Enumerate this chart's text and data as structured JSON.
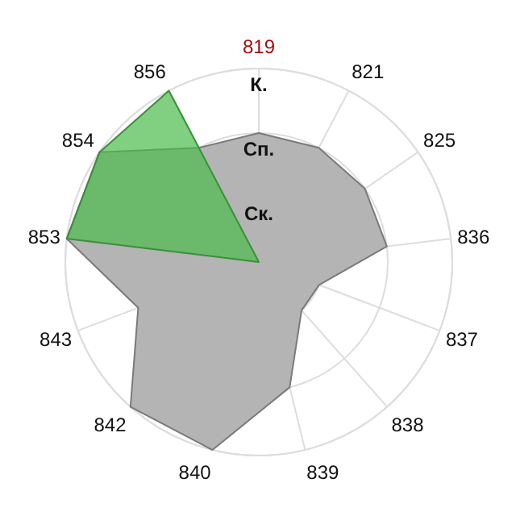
{
  "chart_data": {
    "type": "radar",
    "categories": [
      "819",
      "821",
      "825",
      "836",
      "837",
      "838",
      "839",
      "840",
      "842",
      "843",
      "853",
      "854",
      "856"
    ],
    "ylim": [
      0,
      3
    ],
    "yticks": [
      {
        "value": 1,
        "label": "Ск."
      },
      {
        "value": 2,
        "label": "Сп."
      },
      {
        "value": 3,
        "label": "К."
      }
    ],
    "grid": true,
    "series": [
      {
        "color": "#b4b4b4",
        "values": [
          2,
          2,
          2,
          2,
          1,
          1,
          2,
          3,
          3,
          2,
          3,
          3,
          2
        ]
      },
      {
        "color": "#4cbb4c",
        "values": [
          0,
          0,
          0,
          0,
          0,
          0,
          0,
          0,
          0,
          0,
          3,
          3,
          3
        ]
      }
    ]
  }
}
